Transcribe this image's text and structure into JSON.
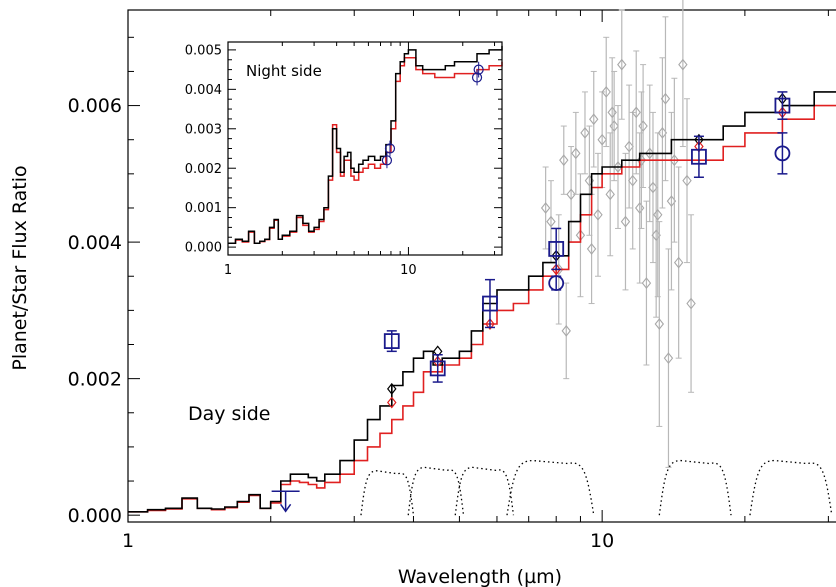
{
  "chart_data": [
    {
      "panel": "main",
      "type": "line",
      "title": "",
      "xlabel": "Wavelength (µm)",
      "ylabel": "Planet/Star Flux Ratio",
      "xscale": "log",
      "xlim": [
        1,
        33
      ],
      "ylim": [
        -0.0001,
        0.0074
      ],
      "xticks": [
        1,
        10
      ],
      "xtick_labels": [
        "1",
        "10"
      ],
      "yticks": [
        0.0,
        0.002,
        0.004,
        0.006
      ],
      "ytick_labels": [
        "0.000",
        "0.002",
        "0.004",
        "0.006"
      ],
      "annotation": "Day side",
      "grid": false,
      "series": [
        {
          "style": "step",
          "color": "#000000",
          "x": [
            1.0,
            1.1,
            1.2,
            1.3,
            1.4,
            1.5,
            1.6,
            1.7,
            1.8,
            1.9,
            2.0,
            2.1,
            2.2,
            2.3,
            2.4,
            2.5,
            2.6,
            2.8,
            3.0,
            3.2,
            3.4,
            3.6,
            3.8,
            4.0,
            4.2,
            4.4,
            4.6,
            4.8,
            5.0,
            5.3,
            5.6,
            6.0,
            6.5,
            7.0,
            7.5,
            8.0,
            8.5,
            9.0,
            9.5,
            10.0,
            11.0,
            12.0,
            14.0,
            16.0,
            18.0,
            20.0,
            24.0,
            28.0,
            33.0
          ],
          "y": [
            5e-05,
            8e-05,
            0.0001,
            0.00025,
            0.0001,
            9e-05,
            0.00012,
            0.0002,
            0.0003,
            0.0001,
            0.0002,
            0.0005,
            0.0006,
            0.0006,
            0.00055,
            0.0005,
            0.0006,
            0.0008,
            0.0011,
            0.0014,
            0.0016,
            0.0019,
            0.0021,
            0.0023,
            0.0024,
            0.0022,
            0.0023,
            0.0023,
            0.0024,
            0.0027,
            0.0031,
            0.0033,
            0.0033,
            0.0035,
            0.0037,
            0.0038,
            0.0043,
            0.0047,
            0.005,
            0.0051,
            0.0052,
            0.0053,
            0.0055,
            0.0055,
            0.0057,
            0.0059,
            0.006,
            0.0062,
            0.0063
          ]
        },
        {
          "style": "step",
          "color": "#e02020",
          "x": [
            1.0,
            1.1,
            1.2,
            1.3,
            1.4,
            1.5,
            1.6,
            1.7,
            1.8,
            1.9,
            2.0,
            2.1,
            2.2,
            2.3,
            2.4,
            2.5,
            2.6,
            2.8,
            3.0,
            3.2,
            3.4,
            3.6,
            3.8,
            4.0,
            4.2,
            4.4,
            4.6,
            4.8,
            5.0,
            5.3,
            5.6,
            6.0,
            6.5,
            7.0,
            7.5,
            8.0,
            8.5,
            9.0,
            9.5,
            10.0,
            11.0,
            12.0,
            14.0,
            16.0,
            18.0,
            20.0,
            24.0,
            28.0,
            33.0
          ],
          "y": [
            5e-05,
            7e-05,
            9e-05,
            0.00024,
            0.0001,
            8e-05,
            0.00011,
            0.00019,
            0.00029,
            0.0001,
            0.00018,
            0.00045,
            0.0005,
            0.00048,
            0.00045,
            0.0004,
            0.00048,
            0.0006,
            0.0008,
            0.001,
            0.0012,
            0.0014,
            0.0016,
            0.0018,
            0.0021,
            0.0021,
            0.0022,
            0.0022,
            0.0023,
            0.0025,
            0.0028,
            0.003,
            0.0031,
            0.0033,
            0.0035,
            0.0036,
            0.004,
            0.0044,
            0.0048,
            0.005,
            0.0051,
            0.0052,
            0.0052,
            0.0052,
            0.0054,
            0.0056,
            0.0058,
            0.006,
            0.0061
          ]
        }
      ],
      "points_blue": [
        {
          "x": 3.6,
          "y": 0.00255,
          "marker": "square",
          "err": 0.00015
        },
        {
          "x": 4.5,
          "y": 0.00215,
          "marker": "square",
          "err": 0.0002
        },
        {
          "x": 5.8,
          "y": 0.0031,
          "marker": "square",
          "err": 0.00035
        },
        {
          "x": 8.0,
          "y": 0.0039,
          "marker": "square",
          "err": 0.0003
        },
        {
          "x": 8.0,
          "y": 0.0034,
          "marker": "circle",
          "err": 0.0001
        },
        {
          "x": 16.0,
          "y": 0.00525,
          "marker": "square",
          "err": 0.0003
        },
        {
          "x": 24.0,
          "y": 0.0053,
          "marker": "circle",
          "err": 0.0003
        },
        {
          "x": 24.0,
          "y": 0.006,
          "marker": "square",
          "err": 0.0002
        },
        {
          "x": 2.15,
          "y": 0.00035,
          "marker": "upper-limit",
          "err": 0.0
        }
      ],
      "model_points": [
        {
          "x": 3.6,
          "y": 0.00185,
          "marker": "diamond",
          "color": "#000000"
        },
        {
          "x": 4.5,
          "y": 0.0024,
          "marker": "diamond",
          "color": "#000000"
        },
        {
          "x": 8.0,
          "y": 0.0038,
          "marker": "diamond",
          "color": "#000000"
        },
        {
          "x": 16.0,
          "y": 0.0055,
          "marker": "diamond",
          "color": "#000000"
        },
        {
          "x": 24.0,
          "y": 0.0061,
          "marker": "diamond",
          "color": "#000000"
        },
        {
          "x": 3.6,
          "y": 0.00165,
          "marker": "diamond",
          "color": "#e02020"
        },
        {
          "x": 4.5,
          "y": 0.00225,
          "marker": "diamond",
          "color": "#e02020"
        },
        {
          "x": 5.8,
          "y": 0.0028,
          "marker": "diamond",
          "color": "#e02020"
        },
        {
          "x": 8.0,
          "y": 0.0036,
          "marker": "diamond",
          "color": "#e02020"
        },
        {
          "x": 16.0,
          "y": 0.0054,
          "marker": "diamond",
          "color": "#e02020"
        },
        {
          "x": 24.0,
          "y": 0.0059,
          "marker": "diamond",
          "color": "#e02020"
        }
      ],
      "spectrum_gray": [
        {
          "x": 7.6,
          "y": 0.0045,
          "err": 0.0006
        },
        {
          "x": 7.8,
          "y": 0.0043,
          "err": 0.0006
        },
        {
          "x": 8.1,
          "y": 0.0036,
          "err": 0.0008
        },
        {
          "x": 8.3,
          "y": 0.0052,
          "err": 0.0005
        },
        {
          "x": 8.6,
          "y": 0.0047,
          "err": 0.0007
        },
        {
          "x": 8.8,
          "y": 0.0053,
          "err": 0.0006
        },
        {
          "x": 9.0,
          "y": 0.0041,
          "err": 0.0009
        },
        {
          "x": 9.2,
          "y": 0.0056,
          "err": 0.0006
        },
        {
          "x": 9.4,
          "y": 0.0049,
          "err": 0.0008
        },
        {
          "x": 9.6,
          "y": 0.0058,
          "err": 0.0007
        },
        {
          "x": 9.8,
          "y": 0.0044,
          "err": 0.0009
        },
        {
          "x": 10.0,
          "y": 0.0055,
          "err": 0.0007
        },
        {
          "x": 10.2,
          "y": 0.0062,
          "err": 0.0008
        },
        {
          "x": 10.4,
          "y": 0.0047,
          "err": 0.0009
        },
        {
          "x": 10.6,
          "y": 0.0057,
          "err": 0.0008
        },
        {
          "x": 10.8,
          "y": 0.0051,
          "err": 0.0009
        },
        {
          "x": 11.0,
          "y": 0.0066,
          "err": 0.0008
        },
        {
          "x": 11.2,
          "y": 0.0043,
          "err": 0.001
        },
        {
          "x": 11.4,
          "y": 0.0054,
          "err": 0.0009
        },
        {
          "x": 11.6,
          "y": 0.0049,
          "err": 0.001
        },
        {
          "x": 11.8,
          "y": 0.0059,
          "err": 0.0009
        },
        {
          "x": 12.0,
          "y": 0.0045,
          "err": 0.0011
        },
        {
          "x": 12.2,
          "y": 0.0057,
          "err": 0.0009
        },
        {
          "x": 12.4,
          "y": 0.0034,
          "err": 0.0012
        },
        {
          "x": 12.6,
          "y": 0.0053,
          "err": 0.001
        },
        {
          "x": 12.8,
          "y": 0.0048,
          "err": 0.0011
        },
        {
          "x": 13.0,
          "y": 0.0041,
          "err": 0.0012
        },
        {
          "x": 13.2,
          "y": 0.0028,
          "err": 0.0015
        },
        {
          "x": 13.4,
          "y": 0.0056,
          "err": 0.0011
        },
        {
          "x": 13.6,
          "y": 0.0061,
          "err": 0.0012
        },
        {
          "x": 13.8,
          "y": 0.0023,
          "err": 0.0016
        },
        {
          "x": 14.0,
          "y": 0.0046,
          "err": 0.0013
        },
        {
          "x": 14.2,
          "y": 0.0052,
          "err": 0.0012
        },
        {
          "x": 14.5,
          "y": 0.0037,
          "err": 0.0014
        },
        {
          "x": 14.8,
          "y": 0.0066,
          "err": 0.0012
        },
        {
          "x": 15.1,
          "y": 0.0049,
          "err": 0.0012
        },
        {
          "x": 15.4,
          "y": 0.0031,
          "err": 0.0013
        },
        {
          "x": 8.4,
          "y": 0.0027,
          "err": 0.0007
        },
        {
          "x": 9.5,
          "y": 0.0039,
          "err": 0.0008
        },
        {
          "x": 10.5,
          "y": 0.0059,
          "err": 0.0008
        },
        {
          "x": 12.1,
          "y": 0.0052,
          "err": 0.001
        },
        {
          "x": 13.1,
          "y": 0.0044,
          "err": 0.0012
        }
      ],
      "filter_curves": [
        {
          "center": 3.6,
          "lo": 3.1,
          "hi": 4.0,
          "peak": 0.00065
        },
        {
          "center": 4.5,
          "lo": 3.9,
          "hi": 5.1,
          "peak": 0.0007
        },
        {
          "center": 5.8,
          "lo": 4.9,
          "hi": 6.5,
          "peak": 0.0007
        },
        {
          "center": 8.0,
          "lo": 6.3,
          "hi": 9.6,
          "peak": 0.0008
        },
        {
          "center": 16.0,
          "lo": 13.2,
          "hi": 18.7,
          "peak": 0.0008
        },
        {
          "center": 24.0,
          "lo": 20.5,
          "hi": 30.5,
          "peak": 0.0008
        }
      ]
    },
    {
      "panel": "inset",
      "type": "line",
      "title": "",
      "xlabel": "",
      "ylabel": "",
      "xscale": "log",
      "xlim": [
        1,
        33
      ],
      "ylim": [
        -0.0002,
        0.0052
      ],
      "xticks": [
        1,
        10
      ],
      "xtick_labels": [
        "1",
        "10"
      ],
      "yticks": [
        0.0,
        0.001,
        0.002,
        0.003,
        0.004,
        0.005
      ],
      "ytick_labels": [
        "0.000",
        "0.001",
        "0.002",
        "0.003",
        "0.004",
        "0.005"
      ],
      "annotation": "Night side",
      "series": [
        {
          "style": "step",
          "color": "#000000",
          "x": [
            1.0,
            1.1,
            1.2,
            1.3,
            1.4,
            1.5,
            1.6,
            1.7,
            1.8,
            1.9,
            2.0,
            2.2,
            2.4,
            2.6,
            2.8,
            3.0,
            3.2,
            3.4,
            3.6,
            3.8,
            4.0,
            4.2,
            4.4,
            4.6,
            4.8,
            5.0,
            5.3,
            5.6,
            6.0,
            6.5,
            7.0,
            7.5,
            8.0,
            8.5,
            9.0,
            9.5,
            10.0,
            11.0,
            12.0,
            14.0,
            16.0,
            18.0,
            20.0,
            24.0,
            28.0,
            33.0
          ],
          "y": [
            0.0001,
            0.0002,
            0.00015,
            0.0004,
            0.0001,
            0.00015,
            0.0002,
            0.0005,
            0.0007,
            0.0002,
            0.0003,
            0.0004,
            0.0008,
            0.0006,
            0.0004,
            0.0005,
            0.0007,
            0.001,
            0.0018,
            0.003,
            0.0025,
            0.0019,
            0.0023,
            0.0024,
            0.002,
            0.0019,
            0.0021,
            0.0022,
            0.0023,
            0.0022,
            0.0023,
            0.0026,
            0.0032,
            0.0044,
            0.0047,
            0.0049,
            0.005,
            0.0046,
            0.0045,
            0.0045,
            0.0046,
            0.0047,
            0.0047,
            0.0049,
            0.005,
            0.0051
          ]
        },
        {
          "style": "step",
          "color": "#e02020",
          "x": [
            1.0,
            1.1,
            1.2,
            1.3,
            1.4,
            1.5,
            1.6,
            1.7,
            1.8,
            1.9,
            2.0,
            2.2,
            2.4,
            2.6,
            2.8,
            3.0,
            3.2,
            3.4,
            3.6,
            3.8,
            4.0,
            4.2,
            4.4,
            4.6,
            4.8,
            5.0,
            5.3,
            5.6,
            6.0,
            6.5,
            7.0,
            7.5,
            8.0,
            8.5,
            9.0,
            9.5,
            10.0,
            11.0,
            12.0,
            14.0,
            16.0,
            18.0,
            20.0,
            24.0,
            28.0,
            33.0
          ],
          "y": [
            0.0001,
            0.00018,
            0.00013,
            0.00038,
            0.0001,
            0.00014,
            0.00019,
            0.00048,
            0.00068,
            0.0002,
            0.00028,
            0.00038,
            0.00075,
            0.00055,
            0.00038,
            0.00045,
            0.00065,
            0.00095,
            0.0017,
            0.0031,
            0.0024,
            0.0018,
            0.0022,
            0.0022,
            0.0018,
            0.0017,
            0.0019,
            0.002,
            0.0021,
            0.002,
            0.0021,
            0.0024,
            0.003,
            0.0042,
            0.0046,
            0.0048,
            0.0048,
            0.0045,
            0.0044,
            0.0043,
            0.0043,
            0.0044,
            0.0044,
            0.0045,
            0.0046,
            0.0047
          ]
        }
      ],
      "points_blue": [
        {
          "x": 7.6,
          "y": 0.0022,
          "marker": "circle",
          "err": 0.0002
        },
        {
          "x": 7.9,
          "y": 0.0025,
          "marker": "circle",
          "err": 0.0002
        },
        {
          "x": 24.0,
          "y": 0.0043,
          "marker": "circle",
          "err": 0.0002
        },
        {
          "x": 24.5,
          "y": 0.0045,
          "marker": "circle",
          "err": 0.0002
        }
      ]
    }
  ]
}
